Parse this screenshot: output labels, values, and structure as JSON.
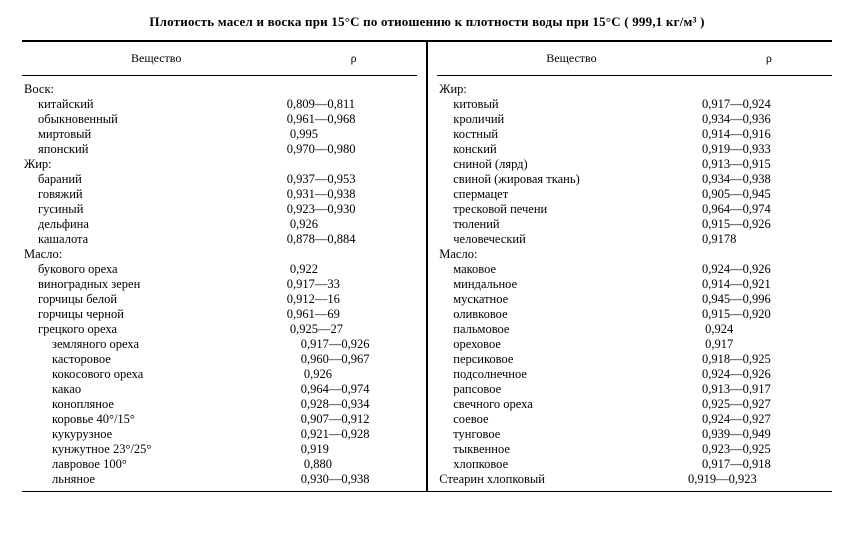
{
  "title": "Плотиость масел и воска при 15°С по отиошению к плотности воды при 15°С ( 999,1 кг/м³ )",
  "headers": {
    "substance": "Вещество",
    "rho": "ρ"
  },
  "left": [
    {
      "label": "Воск:",
      "value": "",
      "indent": 0
    },
    {
      "label": "китайский",
      "value": "0,809—0,811",
      "indent": 1
    },
    {
      "label": "обыкновенный",
      "value": "0,961—0,968",
      "indent": 1
    },
    {
      "label": "миртовый",
      "value": " 0,995",
      "indent": 1
    },
    {
      "label": "японский",
      "value": "0,970—0,980",
      "indent": 1
    },
    {
      "label": "Жир:",
      "value": "",
      "indent": 0
    },
    {
      "label": "бараний",
      "value": "0,937—0,953",
      "indent": 1
    },
    {
      "label": "говяжий",
      "value": "0,931—0,938",
      "indent": 1
    },
    {
      "label": "гусиный",
      "value": "0,923—0,930",
      "indent": 1
    },
    {
      "label": "дельфина",
      "value": " 0,926",
      "indent": 1
    },
    {
      "label": "кашалота",
      "value": "0,878—0,884",
      "indent": 1
    },
    {
      "label": "Масло:",
      "value": "",
      "indent": 0
    },
    {
      "label": "букового ореха",
      "value": " 0,922",
      "indent": 1
    },
    {
      "label": "виноградных зерен",
      "value": "0,917—33",
      "indent": 1
    },
    {
      "label": "горчицы белой",
      "value": "0,912—16",
      "indent": 1
    },
    {
      "label": "горчицы черной",
      "value": "0,961—69",
      "indent": 1
    },
    {
      "label": "грецкого ореха",
      "value": " 0,925—27",
      "indent": 1
    },
    {
      "label": "земляного ореха",
      "value": "0,917—0,926",
      "indent": 2
    },
    {
      "label": "касторовое",
      "value": "0,960—0,967",
      "indent": 2
    },
    {
      "label": "кокосового ореха",
      "value": " 0,926",
      "indent": 2
    },
    {
      "label": "какао",
      "value": "0,964—0,974",
      "indent": 2
    },
    {
      "label": "конопляное",
      "value": "0,928—0,934",
      "indent": 2
    },
    {
      "label": "коровье 40°/15°",
      "value": "0,907—0,912",
      "indent": 2
    },
    {
      "label": "кукурузное",
      "value": "0,921—0,928",
      "indent": 2
    },
    {
      "label": "кунжутное 23°/25°",
      "value": "0,919",
      "indent": 2
    },
    {
      "label": "лавровое 100°",
      "value": " 0,880",
      "indent": 2
    },
    {
      "label": "льняное",
      "value": "0,930—0,938",
      "indent": 2
    }
  ],
  "right": [
    {
      "label": "Жир:",
      "value": "",
      "indent": 0
    },
    {
      "label": "китовый",
      "value": "0,917—0,924",
      "indent": 1
    },
    {
      "label": "кроличий",
      "value": "0,934—0,936",
      "indent": 1
    },
    {
      "label": "костный",
      "value": "0,914—0,916",
      "indent": 1
    },
    {
      "label": "конский",
      "value": "0,919—0,933",
      "indent": 1
    },
    {
      "label": "сниной (лярд)",
      "value": "0,913—0,915",
      "indent": 1
    },
    {
      "label": "свиной (жировая ткань)",
      "value": "0,934—0,938",
      "indent": 1
    },
    {
      "label": "спермацет",
      "value": "0,905—0,945",
      "indent": 1
    },
    {
      "label": "тресковой печени",
      "value": "0,964—0,974",
      "indent": 1
    },
    {
      "label": "тюлений",
      "value": "0,915—0,926",
      "indent": 1
    },
    {
      "label": "человеческий",
      "value": "0,9178",
      "indent": 1
    },
    {
      "label": "Масло:",
      "value": "",
      "indent": 0
    },
    {
      "label": "маковое",
      "value": "0,924—0,926",
      "indent": 1
    },
    {
      "label": "миндальное",
      "value": "0,914—0,921",
      "indent": 1
    },
    {
      "label": "мускатное",
      "value": "0,945—0,996",
      "indent": 1
    },
    {
      "label": "оливковое",
      "value": "0,915—0,920",
      "indent": 1
    },
    {
      "label": "пальмовое",
      "value": " 0,924",
      "indent": 1
    },
    {
      "label": "ореховое",
      "value": " 0,917",
      "indent": 1
    },
    {
      "label": "персиковое",
      "value": "0,918—0,925",
      "indent": 1
    },
    {
      "label": "подсолнечное",
      "value": "0,924—0,926",
      "indent": 1
    },
    {
      "label": "рапсовое",
      "value": "0,913—0,917",
      "indent": 1
    },
    {
      "label": "свечного ореха",
      "value": "0,925—0,927",
      "indent": 1
    },
    {
      "label": "соевое",
      "value": "0,924—0,927",
      "indent": 1
    },
    {
      "label": "тунговое",
      "value": "0,939—0,949",
      "indent": 1
    },
    {
      "label": "тыквенное",
      "value": "0,923—0,925",
      "indent": 1
    },
    {
      "label": "хлопковое",
      "value": "0,917—0,918",
      "indent": 1
    },
    {
      "label": "Стеарин хлопковый",
      "value": "0,919—0,923",
      "indent": 0
    }
  ]
}
